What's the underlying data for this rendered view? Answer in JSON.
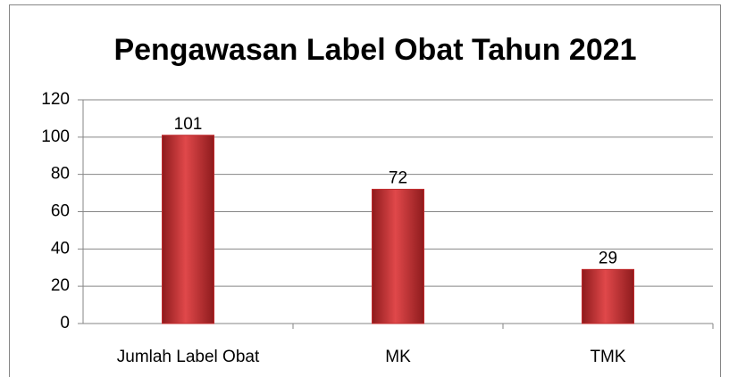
{
  "chart_data": {
    "type": "bar",
    "title": "Pengawasan Label Obat Tahun 2021",
    "categories": [
      "Jumlah Label Obat",
      "MK",
      "TMK"
    ],
    "values": [
      101,
      72,
      29
    ],
    "color": "#c0282b",
    "ylim": [
      0,
      120
    ],
    "yticks": [
      0,
      20,
      40,
      60,
      80,
      100,
      120
    ],
    "grid": true
  }
}
